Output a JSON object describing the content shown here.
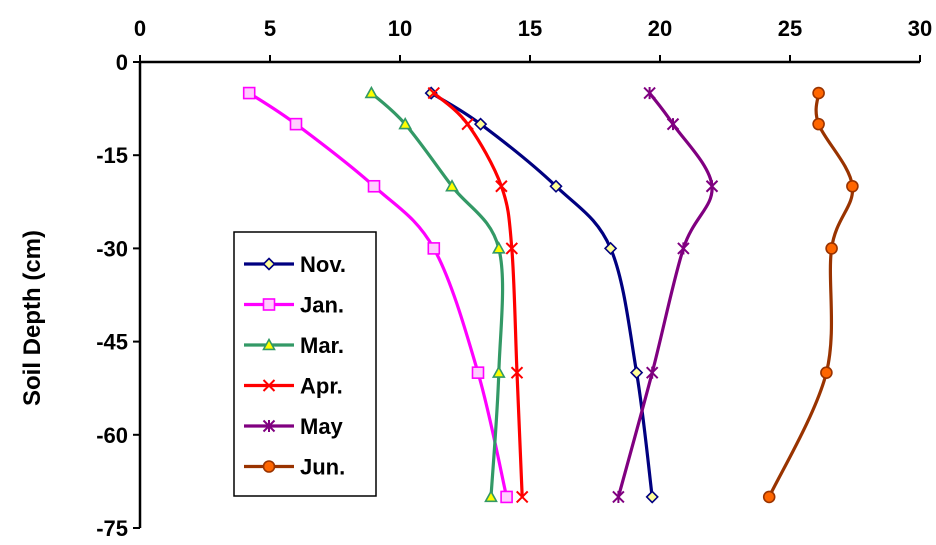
{
  "chart_data": {
    "type": "line",
    "title": "",
    "xlabel": "",
    "ylabel": "Soil Depth (cm)",
    "xlim": [
      0,
      30
    ],
    "ylim": [
      -75,
      0
    ],
    "x_ticks": [
      0,
      5,
      10,
      15,
      20,
      25,
      30
    ],
    "y_ticks": [
      0,
      -15,
      -30,
      -45,
      -60,
      -75
    ],
    "x_axis_position": "top",
    "grid": false,
    "legend_position": "left-middle",
    "series": [
      {
        "name": "Nov.",
        "color": "#000080",
        "marker": "diamond",
        "marker_fill": "#ffff99",
        "x": [
          11.2,
          13.1,
          16.0,
          18.1,
          19.1,
          19.7
        ],
        "y": [
          -5,
          -10,
          -20,
          -30,
          -50,
          -70
        ]
      },
      {
        "name": "Jan.",
        "color": "#ff00ff",
        "marker": "square",
        "marker_fill": "#ffccff",
        "x": [
          4.2,
          6.0,
          9.0,
          11.3,
          13.0,
          14.1
        ],
        "y": [
          -5,
          -10,
          -20,
          -30,
          -50,
          -70
        ]
      },
      {
        "name": "Mar.",
        "color": "#339966",
        "marker": "triangle",
        "marker_fill": "#ffff00",
        "x": [
          8.9,
          10.2,
          12.0,
          13.8,
          13.8,
          13.5
        ],
        "y": [
          -5,
          -10,
          -20,
          -30,
          -50,
          -70
        ]
      },
      {
        "name": "Apr.",
        "color": "#ff0000",
        "marker": "x",
        "marker_fill": "none",
        "x": [
          11.3,
          12.6,
          13.9,
          14.3,
          14.5,
          14.7
        ],
        "y": [
          -5,
          -10,
          -20,
          -30,
          -50,
          -70
        ]
      },
      {
        "name": "May",
        "color": "#800080",
        "marker": "star",
        "marker_fill": "none",
        "x": [
          19.6,
          20.5,
          22.0,
          20.9,
          19.7,
          18.4
        ],
        "y": [
          -5,
          -10,
          -20,
          -30,
          -50,
          -70
        ]
      },
      {
        "name": "Jun.",
        "color": "#993300",
        "marker": "circle",
        "marker_fill": "#ff6600",
        "x": [
          26.1,
          26.1,
          27.4,
          26.6,
          26.4,
          24.2
        ],
        "y": [
          -5,
          -10,
          -20,
          -30,
          -50,
          -70
        ]
      }
    ]
  }
}
